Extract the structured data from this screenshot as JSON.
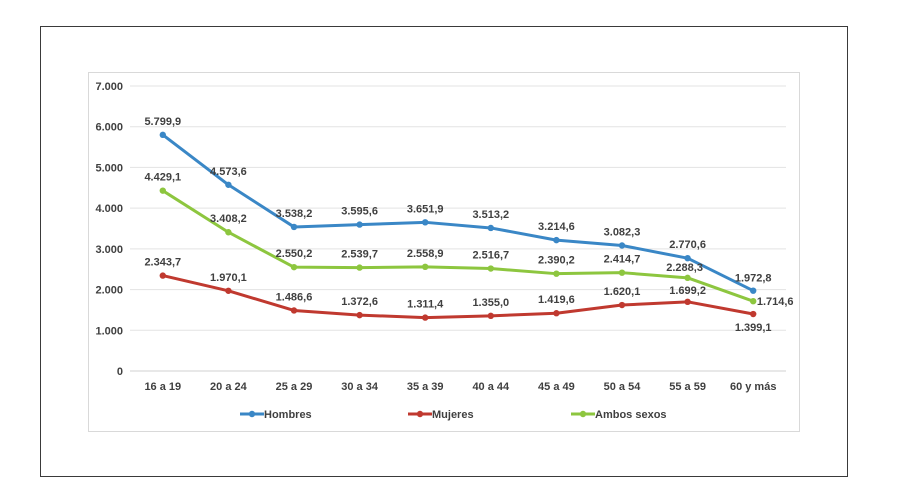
{
  "chart_data": {
    "type": "line",
    "title": "",
    "xlabel": "",
    "ylabel": "",
    "categories": [
      "16 a 19",
      "20 a 24",
      "25 a 29",
      "30 a 34",
      "35 a 39",
      "40 a 44",
      "45 a 49",
      "50 a 54",
      "55 a 59",
      "60 y más"
    ],
    "ylim": [
      0,
      7000
    ],
    "yticks": [
      0,
      1000,
      2000,
      3000,
      4000,
      5000,
      6000,
      7000
    ],
    "ytick_labels": [
      "0",
      "1.000",
      "2.000",
      "3.000",
      "4.000",
      "5.000",
      "6.000",
      "7.000"
    ],
    "grid": true,
    "legend_position": "bottom",
    "series": [
      {
        "name": "Hombres",
        "color": "#3a87c6",
        "values": [
          5799.9,
          4573.6,
          3538.2,
          3595.6,
          3651.9,
          3513.2,
          3214.6,
          3082.3,
          2770.6,
          1972.8
        ],
        "labels": [
          "5.799,9",
          "4.573,6",
          "3.538,2",
          "3.595,6",
          "3.651,9",
          "3.513,2",
          "3.214,6",
          "3.082,3",
          "2.770,6",
          "1.972,8"
        ]
      },
      {
        "name": "Mujeres",
        "color": "#c0392f",
        "values": [
          2343.7,
          1970.1,
          1486.6,
          1372.6,
          1311.4,
          1355.0,
          1419.6,
          1620.1,
          1699.2,
          1399.1
        ],
        "labels": [
          "2.343,7",
          "1.970,1",
          "1.486,6",
          "1.372,6",
          "1.311,4",
          "1.355,0",
          "1.419,6",
          "1.620,1",
          "1.699,2",
          "1.399,1"
        ]
      },
      {
        "name": "Ambos sexos",
        "color": "#8dc63f",
        "values": [
          4429.1,
          3408.2,
          2550.2,
          2539.7,
          2558.9,
          2516.7,
          2390.2,
          2414.7,
          2288.3,
          1714.6
        ],
        "labels": [
          "4.429,1",
          "3.408,2",
          "2.550,2",
          "2.539,7",
          "2.558,9",
          "2.516,7",
          "2.390,2",
          "2.414,7",
          "2.288,3",
          "1.714,6"
        ]
      }
    ]
  }
}
